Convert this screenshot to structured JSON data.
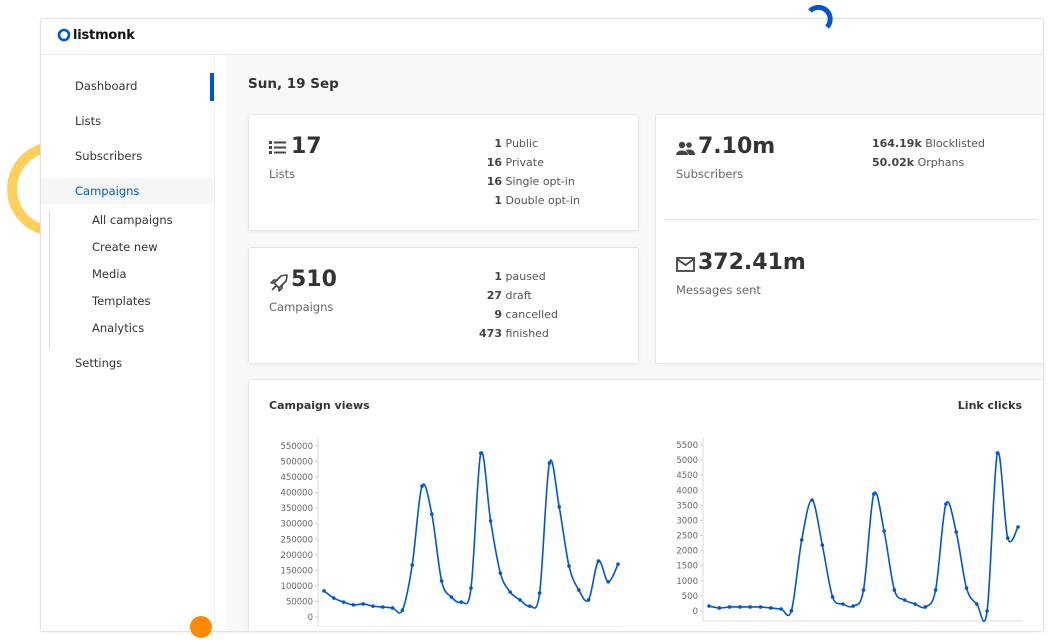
{
  "brand": "listmonk",
  "nav": {
    "items": [
      "Dashboard",
      "Lists",
      "Subscribers",
      "Campaigns"
    ],
    "sub": [
      "All campaigns",
      "Create new",
      "Media",
      "Templates",
      "Analytics"
    ],
    "after": [
      "Settings"
    ]
  },
  "date": "Sun, 19 Sep",
  "cards": {
    "lists": {
      "count": 17,
      "label": "Lists",
      "breakdown": [
        {
          "count": 1,
          "label": "Public"
        },
        {
          "count": 16,
          "label": "Private"
        },
        {
          "count": 16,
          "label": "Single opt-in"
        },
        {
          "count": 1,
          "label": "Double opt-in"
        }
      ]
    },
    "campaigns": {
      "count": 510,
      "label": "Campaigns",
      "breakdown": [
        {
          "count": 1,
          "label": "paused"
        },
        {
          "count": 27,
          "label": "draft"
        },
        {
          "count": 9,
          "label": "cancelled"
        },
        {
          "count": 473,
          "label": "finished"
        }
      ]
    },
    "subscribers": {
      "count": "7.10m",
      "label": "Subscribers",
      "breakdown": [
        {
          "count": "164.19k",
          "label": "Blocklisted"
        },
        {
          "count": "50.02k",
          "label": "Orphans"
        }
      ]
    },
    "messages": {
      "count": "372.41m",
      "label": "Messages sent"
    }
  },
  "chart_data": [
    {
      "type": "line",
      "title": "Campaign views",
      "color": "#0055d4",
      "ylim": [
        0,
        550000
      ],
      "yticks": [
        0,
        50000,
        100000,
        150000,
        200000,
        250000,
        300000,
        350000,
        400000,
        450000,
        500000,
        550000
      ],
      "series": [
        {
          "name": "Campaign views",
          "color": "#0055d4",
          "values": [
            84000,
            61000,
            48000,
            39000,
            42000,
            35000,
            32000,
            29000,
            22000,
            167000,
            421000,
            331000,
            116000,
            64000,
            48000,
            93000,
            527000,
            309000,
            141000,
            80000,
            55000,
            35000,
            77000,
            495000,
            354000,
            164000,
            87000,
            55000,
            180000,
            113000,
            170000
          ]
        }
      ]
    },
    {
      "type": "line",
      "title": "Link clicks",
      "color": "#0055d4",
      "ylim": [
        0,
        5500
      ],
      "yticks": [
        0,
        500,
        1000,
        1500,
        2000,
        2500,
        3000,
        3500,
        4000,
        4500,
        5000,
        5500
      ],
      "series": [
        {
          "name": "Link clicks",
          "color": "#0055d4",
          "values": [
            166,
            100,
            133,
            133,
            133,
            133,
            100,
            66,
            10,
            2352,
            3677,
            2187,
            464,
            232,
            166,
            696,
            3876,
            2650,
            696,
            364,
            232,
            133,
            696,
            3545,
            2617,
            762,
            232,
            0,
            5234,
            2418,
            2783
          ]
        }
      ]
    }
  ]
}
